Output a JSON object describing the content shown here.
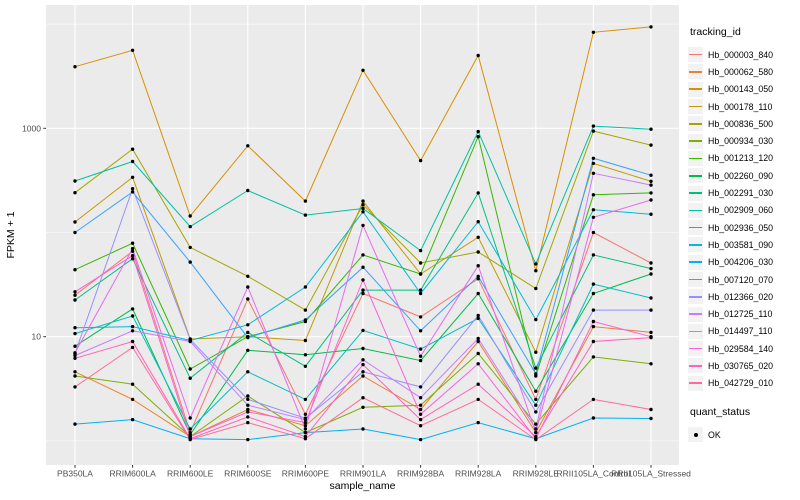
{
  "chart_data": {
    "type": "line",
    "title": "",
    "xlabel": "sample_name",
    "ylabel": "FPKM + 1",
    "y_scale": "log10",
    "y_tick_labels": [
      "1000",
      "10"
    ],
    "y_tick_values": [
      1000,
      10
    ],
    "y_minor_values": [
      1,
      100,
      10000
    ],
    "ylim": [
      0.9,
      12000
    ],
    "grid": true,
    "legend_position": "right",
    "point_color": "#000000",
    "categories": [
      "PB350LA",
      "RRIM600LA",
      "RRIM600LE",
      "RRIM600SE",
      "RRIM600PE",
      "RRIM901LA",
      "RRIM928BA",
      "RRIM928LA",
      "RRIM928LE",
      "RRII105LA_Control",
      "RRII105LA_Stressed"
    ],
    "series": [
      {
        "name": "Hb_000003_840",
        "color": "#F8766D",
        "values": [
          25,
          66,
          1.2,
          23,
          1.8,
          26,
          15.5,
          36,
          2.5,
          100,
          51
        ]
      },
      {
        "name": "Hb_000062_580",
        "color": "#EA8331",
        "values": [
          4.6,
          2.5,
          1.1,
          2.0,
          1.4,
          4.2,
          2.0,
          9.0,
          1.2,
          12.5,
          11
        ]
      },
      {
        "name": "Hb_000143_050",
        "color": "#D89000",
        "values": [
          3900,
          5600,
          144,
          680,
          200,
          3600,
          490,
          5000,
          43,
          8350,
          9400
        ]
      },
      {
        "name": "Hb_000178_110",
        "color": "#C09B00",
        "values": [
          126,
          339,
          9.5,
          10,
          9.2,
          200,
          40,
          90,
          7.1,
          460,
          310
        ]
      },
      {
        "name": "Hb_000836_500",
        "color": "#A3A500",
        "values": [
          241,
          630,
          72,
          38,
          18,
          185,
          51,
          65,
          29,
          940,
          690
        ]
      },
      {
        "name": "Hb_000934_030",
        "color": "#7CAE00",
        "values": [
          4.2,
          3.5,
          1.1,
          2.7,
          1.2,
          2.1,
          2.2,
          6.9,
          1.45,
          6.4,
          5.5
        ]
      },
      {
        "name": "Hb_001213_120",
        "color": "#39B600",
        "values": [
          44,
          79,
          4.9,
          10,
          14,
          61,
          40,
          830,
          4.2,
          230,
          240
        ]
      },
      {
        "name": "Hb_002260_090",
        "color": "#00BB4E",
        "values": [
          8.1,
          18.5,
          1.15,
          7.4,
          6.7,
          7.7,
          5.9,
          26,
          3.0,
          26,
          40
        ]
      },
      {
        "name": "Hb_002291_030",
        "color": "#00BF7D",
        "values": [
          22.5,
          56,
          4.0,
          11,
          5.2,
          28,
          28,
          240,
          5.0,
          61,
          45
        ]
      },
      {
        "name": "Hb_002909_060",
        "color": "#00C1A3",
        "values": [
          312,
          480,
          114,
          253,
          147,
          170,
          67,
          930,
          50,
          1050,
          980
        ]
      },
      {
        "name": "Hb_002936_050",
        "color": "#00BFC4",
        "values": [
          10.7,
          15.8,
          1.3,
          4.6,
          2.5,
          11.5,
          7.6,
          15,
          2.2,
          32,
          23.5
        ]
      },
      {
        "name": "Hb_003581_090",
        "color": "#00BAE0",
        "values": [
          12.2,
          12.5,
          9.2,
          13,
          30,
          158,
          26,
          127,
          14.6,
          165,
          150
        ]
      },
      {
        "name": "Hb_004206_030",
        "color": "#00B0F6",
        "values": [
          1.45,
          1.6,
          1.05,
          1.03,
          1.2,
          1.3,
          1.03,
          1.5,
          1.05,
          1.66,
          1.64
        ]
      },
      {
        "name": "Hb_007120_070",
        "color": "#35A2FF",
        "values": [
          100,
          245,
          52,
          9.8,
          14.5,
          46.5,
          11.4,
          38,
          4.4,
          515,
          355
        ]
      },
      {
        "name": "Hb_012366_020",
        "color": "#9590FF",
        "values": [
          6.9,
          263,
          9.4,
          2.5,
          1.65,
          4.6,
          3.3,
          16,
          1.9,
          18,
          18
        ]
      },
      {
        "name": "Hb_012725_110",
        "color": "#C77CFF",
        "values": [
          6.6,
          11.4,
          9.0,
          2.2,
          1.6,
          6.0,
          2.6,
          9.6,
          1.3,
          370,
          285
        ]
      },
      {
        "name": "Hb_014497_110",
        "color": "#E76BF3",
        "values": [
          7.0,
          70,
          1.66,
          30,
          1.3,
          117,
          6.5,
          48,
          1.2,
          140,
          205
        ]
      },
      {
        "name": "Hb_029584_140",
        "color": "#FA62DB",
        "values": [
          27,
          60,
          1.1,
          1.9,
          1.5,
          35,
          1.8,
          5.5,
          1.05,
          14,
          10
        ]
      },
      {
        "name": "Hb_030765_020",
        "color": "#FF62BC",
        "values": [
          6.2,
          9.0,
          1.05,
          1.7,
          1.1,
          5.4,
          1.6,
          3.5,
          1.1,
          9.0,
          9.8
        ]
      },
      {
        "name": "Hb_042729_010",
        "color": "#FF6A98",
        "values": [
          3.3,
          7.9,
          1.03,
          1.5,
          1.05,
          2.6,
          1.4,
          2.5,
          1.03,
          2.5,
          2.0
        ]
      }
    ]
  },
  "legend": {
    "tracking_title": "tracking_id",
    "quant_title": "quant_status",
    "quant_items": [
      {
        "label": "OK"
      }
    ]
  },
  "theme": {
    "panel_bg": "#EBEBEB",
    "grid_color": "#FFFFFF",
    "axis_text_color": "#4D4D4D",
    "tick_color": "#333333",
    "key_bg": "#F2F2F2"
  }
}
